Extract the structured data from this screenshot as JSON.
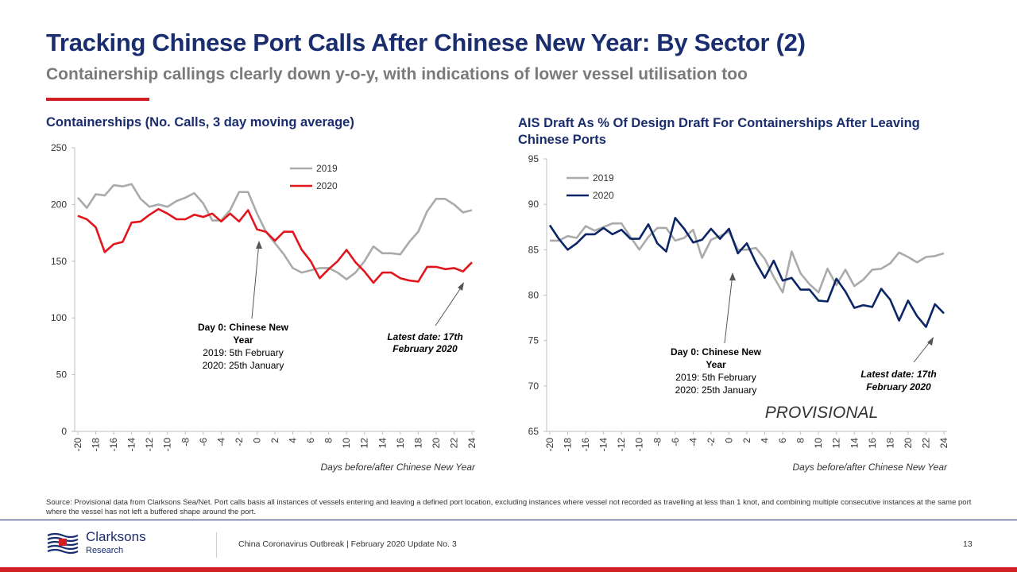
{
  "header": {
    "title": "Tracking Chinese Port Calls After Chinese New Year: By Sector (2)",
    "subtitle": "Containership callings clearly down y-o-y, with indications of lower vessel utilisation too"
  },
  "colors": {
    "navy": "#1a2d6e",
    "red": "#d21f26",
    "grey_series": "#aaaaaa",
    "red_series": "#e2151d",
    "navy_series": "#0c2566"
  },
  "chart_data": [
    {
      "type": "line",
      "title": "Containerships (No. Calls, 3 day moving average)",
      "xlabel": "Days before/after Chinese New Year",
      "ylabel": "",
      "ylim": [
        0,
        250
      ],
      "yticks": [
        0,
        50,
        100,
        150,
        200,
        250
      ],
      "xticks": [
        -20,
        -18,
        -16,
        -14,
        -12,
        -10,
        -8,
        -6,
        -4,
        -2,
        0,
        2,
        4,
        6,
        8,
        10,
        12,
        14,
        16,
        18,
        20,
        22,
        24
      ],
      "grid": false,
      "legend": "top-right",
      "x": [
        -20,
        -19,
        -18,
        -17,
        -16,
        -15,
        -14,
        -13,
        -12,
        -11,
        -10,
        -9,
        -8,
        -7,
        -6,
        -5,
        -4,
        -3,
        -2,
        -1,
        0,
        1,
        2,
        3,
        4,
        5,
        6,
        7,
        8,
        9,
        10,
        11,
        12,
        13,
        14,
        15,
        16,
        17,
        18,
        19,
        20,
        21,
        22,
        23,
        24
      ],
      "series": [
        {
          "name": "2019",
          "color": "#aaaaaa",
          "values": [
            206,
            197,
            209,
            208,
            217,
            216,
            218,
            205,
            198,
            200,
            198,
            203,
            206,
            210,
            201,
            186,
            186,
            195,
            211,
            211,
            192,
            176,
            166,
            156,
            144,
            140,
            142,
            144,
            144,
            140,
            134,
            140,
            150,
            163,
            157,
            157,
            156,
            167,
            176,
            194,
            205,
            205,
            200,
            193,
            195
          ]
        },
        {
          "name": "2020",
          "color": "#e2151d",
          "values": [
            190,
            187,
            180,
            158,
            165,
            167,
            184,
            185,
            191,
            196,
            192,
            187,
            187,
            191,
            189,
            192,
            185,
            192,
            185,
            195,
            178,
            176,
            168,
            176,
            176,
            160,
            150,
            135,
            143,
            150,
            160,
            149,
            141,
            131,
            140,
            140,
            135,
            133,
            132,
            145,
            145,
            143,
            144,
            141,
            149
          ]
        }
      ],
      "annotations": {
        "day0_title": "Day 0: Chinese New Year",
        "day0_2019": "2019: 5th February",
        "day0_2020": "2020: 25th January",
        "latest": "Latest date: 17th February 2020"
      }
    },
    {
      "type": "line",
      "title": "AIS Draft As % Of Design Draft For Containerships After Leaving Chinese Ports",
      "xlabel": "Days before/after Chinese New Year",
      "ylabel": "",
      "ylim": [
        65,
        95
      ],
      "yticks": [
        65,
        70,
        75,
        80,
        85,
        90,
        95
      ],
      "xticks": [
        -20,
        -18,
        -16,
        -14,
        -12,
        -10,
        -8,
        -6,
        -4,
        -2,
        0,
        2,
        4,
        6,
        8,
        10,
        12,
        14,
        16,
        18,
        20,
        22,
        24
      ],
      "grid": false,
      "legend": "top-left",
      "x": [
        -20,
        -19,
        -18,
        -17,
        -16,
        -15,
        -14,
        -13,
        -12,
        -11,
        -10,
        -9,
        -8,
        -7,
        -6,
        -5,
        -4,
        -3,
        -2,
        -1,
        0,
        1,
        2,
        3,
        4,
        5,
        6,
        7,
        8,
        9,
        10,
        11,
        12,
        13,
        14,
        15,
        16,
        17,
        18,
        19,
        20,
        21,
        22,
        23,
        24
      ],
      "series": [
        {
          "name": "2019",
          "color": "#aaaaaa",
          "values": [
            86.0,
            86.0,
            86.5,
            86.3,
            87.6,
            87.1,
            87.5,
            87.9,
            87.9,
            86.4,
            85.0,
            86.4,
            87.4,
            87.4,
            86.0,
            86.3,
            87.2,
            84.1,
            86.1,
            86.5,
            87.0,
            85.0,
            85.0,
            85.2,
            84.0,
            82.0,
            80.3,
            84.8,
            82.4,
            81.2,
            80.3,
            82.9,
            81.1,
            82.8,
            81.0,
            81.7,
            82.8,
            82.9,
            83.5,
            84.7,
            84.2,
            83.6,
            84.2,
            84.3,
            84.6
          ]
        },
        {
          "name": "2020",
          "color": "#0c2566",
          "values": [
            87.7,
            86.2,
            85.0,
            85.7,
            86.7,
            86.7,
            87.4,
            86.7,
            87.2,
            86.2,
            86.2,
            87.8,
            85.7,
            84.8,
            88.5,
            87.3,
            85.8,
            86.1,
            87.3,
            86.2,
            87.3,
            84.6,
            85.7,
            83.6,
            81.9,
            83.8,
            81.6,
            81.9,
            80.6,
            80.6,
            79.4,
            79.3,
            81.8,
            80.4,
            78.6,
            78.9,
            78.7,
            80.7,
            79.5,
            77.2,
            79.4,
            77.7,
            76.5,
            79.0,
            78.0
          ]
        }
      ],
      "annotations": {
        "day0_title": "Day 0: Chinese New Year",
        "day0_2019": "2019: 5th February",
        "day0_2020": "2020: 25th January",
        "latest": "Latest date: 17th February 2020",
        "provisional": "PROVISIONAL"
      }
    }
  ],
  "source": "Source: Provisional data from Clarksons Sea/Net. Port calls basis all instances of vessels entering and leaving a defined port location, excluding instances where vessel not recorded as travelling at less than 1 knot, and combining multiple consecutive instances at the same port where the vessel has not left a buffered shape around the port.",
  "footer": {
    "logo_name": "Clarksons",
    "logo_sub": "Research",
    "text": "China Coronavirus Outbreak | February 2020 Update No. 3",
    "page": "13"
  }
}
